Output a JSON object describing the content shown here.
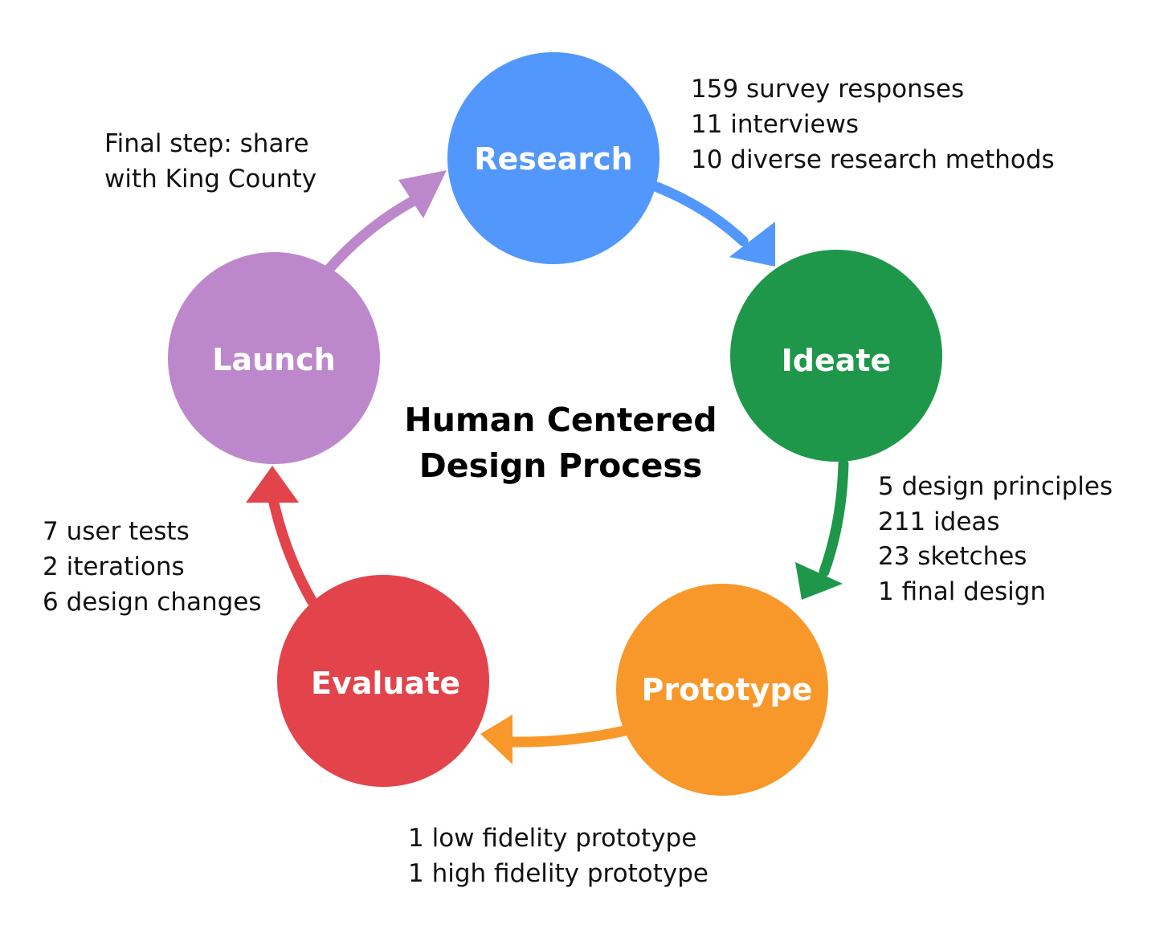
{
  "title": {
    "line1": "Human Centered",
    "line2": "Design Process"
  },
  "colors": {
    "research": "#5298fc",
    "ideate": "#1e974a",
    "prototype": "#f8982a",
    "evaluate": "#e3434a",
    "launch": "#bd88cb"
  },
  "stages": {
    "research": {
      "label": "Research"
    },
    "ideate": {
      "label": "Ideate"
    },
    "prototype": {
      "label": "Prototype"
    },
    "evaluate": {
      "label": "Evaluate"
    },
    "launch": {
      "label": "Launch"
    }
  },
  "notes": {
    "research": [
      "159 survey responses",
      "11 interviews",
      "10 diverse research methods"
    ],
    "ideate": [
      "5 design principles",
      "211 ideas",
      "23 sketches",
      "1 final design"
    ],
    "prototype": [
      "1 low fidelity prototype",
      "1 high fidelity prototype"
    ],
    "evaluate": [
      "7 user tests",
      "2 iterations",
      "6 design changes"
    ],
    "launch": [
      "Final step: share",
      "with King County"
    ]
  }
}
